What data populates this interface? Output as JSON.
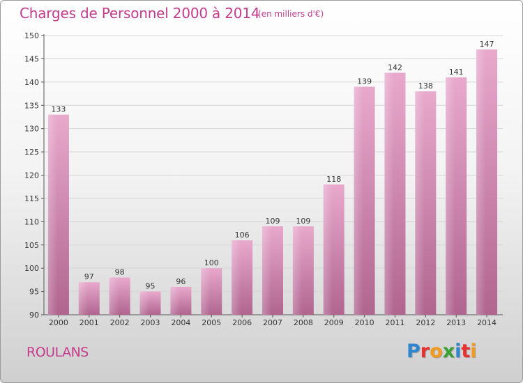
{
  "header": {
    "title": "Charges de Personnel 2000 à 2014",
    "subtitle": "(en milliers d'€)"
  },
  "footer": {
    "place": "ROULANS",
    "logo": "Proxiti",
    "logo_letters": [
      {
        "char": "P",
        "color": "#2e86d1"
      },
      {
        "char": "r",
        "color": "#e8312f"
      },
      {
        "char": "o",
        "color": "#f39a1f"
      },
      {
        "char": "x",
        "color": "#3aa035"
      },
      {
        "char": "i",
        "color": "#2e86d1"
      },
      {
        "char": "t",
        "color": "#e8312f"
      },
      {
        "char": "i",
        "color": "#f39a1f"
      }
    ]
  },
  "colors": {
    "accent": "#c33b8a",
    "bar_top": "#e8a9cc",
    "bar_bottom": "#b0658f"
  },
  "chart_data": {
    "type": "bar",
    "title": "Charges de Personnel 2000 à 2014",
    "subtitle": "(en milliers d'€)",
    "categories": [
      "2000",
      "2001",
      "2002",
      "2003",
      "2004",
      "2005",
      "2006",
      "2007",
      "2008",
      "2009",
      "2010",
      "2011",
      "2012",
      "2013",
      "2014"
    ],
    "values": [
      133,
      97,
      98,
      95,
      96,
      100,
      106,
      109,
      109,
      118,
      139,
      142,
      138,
      141,
      147
    ],
    "xlabel": "",
    "ylabel": "",
    "ylim": [
      90,
      150
    ],
    "yticks": [
      90,
      95,
      100,
      105,
      110,
      115,
      120,
      125,
      130,
      135,
      140,
      145,
      150
    ],
    "grid": true,
    "legend": "none"
  }
}
